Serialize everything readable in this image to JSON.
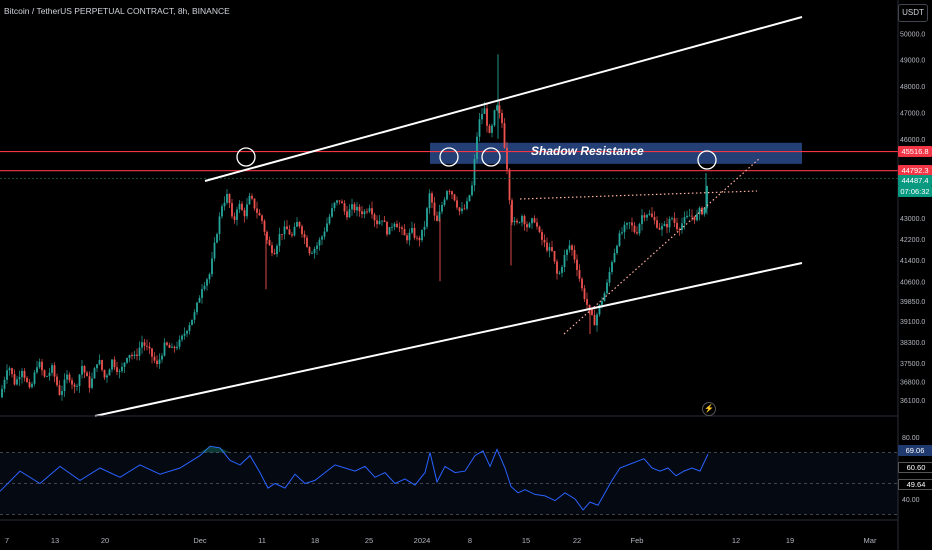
{
  "header": {
    "symbol_title": "Bitcoin / TetherUS PERPETUAL CONTRACT, 8h, BINANCE",
    "currency_button": "USDT"
  },
  "annotations": {
    "zone_label": "Shadow Resistance",
    "flash_icon": "lightning-icon"
  },
  "colors": {
    "background": "#000000",
    "up_candle": "#26a69a",
    "down_candle": "#ef5350",
    "channel": "#ffffff",
    "resistance_line": "#f23645",
    "zone_fill": "#2a4a8a",
    "rsi_line": "#2962ff",
    "rsi_label_bg": "#1e3a6e"
  },
  "price_badges": [
    {
      "text": "45516.8",
      "bg": "#f23645",
      "price": 45516.8
    },
    {
      "text": "44792.3",
      "bg": "#f23645",
      "price": 44792.3
    },
    {
      "text": "44487.4",
      "bg": "#089981",
      "price": 44487.4
    },
    {
      "text": "07:06:32",
      "bg": "#089981",
      "price": 44330
    }
  ],
  "rsi_badges": [
    {
      "text": "69.06",
      "bg": "#1e3a6e",
      "value": 69.06
    },
    {
      "text": "60.60",
      "bg": "#000000",
      "value": 60.6
    },
    {
      "text": "49.64",
      "bg": "#000000",
      "value": 49.64
    }
  ],
  "chart_data": {
    "type": "candlestick",
    "price_axis": {
      "ticks": [
        "50000.0",
        "49000.0",
        "48000.0",
        "47000.0",
        "46000.0",
        "43000.0",
        "42200.0",
        "41400.0",
        "40600.0",
        "39850.0",
        "39100.0",
        "38300.0",
        "37500.0",
        "36800.0",
        "36100.0"
      ],
      "ylim": [
        35700,
        51500
      ]
    },
    "rsi_axis": {
      "ticks": [
        "80.00",
        "40.00"
      ],
      "ylim": [
        30,
        85
      ],
      "bands": [
        70,
        50,
        30
      ]
    },
    "x_axis": {
      "ticks": [
        "7",
        "13",
        "20",
        "Dec",
        "11",
        "18",
        "25",
        "2024",
        "8",
        "15",
        "22",
        "Feb",
        "12",
        "19",
        "Mar"
      ]
    },
    "candle_path": [
      [
        0,
        36200
      ],
      [
        8,
        37500
      ],
      [
        15,
        36700
      ],
      [
        22,
        37300
      ],
      [
        30,
        36400
      ],
      [
        38,
        37600
      ],
      [
        45,
        36900
      ],
      [
        52,
        37300
      ],
      [
        60,
        36300
      ],
      [
        68,
        37100
      ],
      [
        75,
        36500
      ],
      [
        82,
        37400
      ],
      [
        90,
        36600
      ],
      [
        98,
        37700
      ],
      [
        105,
        36900
      ],
      [
        112,
        37600
      ],
      [
        120,
        37100
      ],
      [
        128,
        37900
      ],
      [
        135,
        37700
      ],
      [
        142,
        38300
      ],
      [
        150,
        37900
      ],
      [
        157,
        37400
      ],
      [
        165,
        38200
      ],
      [
        172,
        38000
      ],
      [
        180,
        38300
      ],
      [
        188,
        38900
      ],
      [
        195,
        39400
      ],
      [
        202,
        40400
      ],
      [
        210,
        40900
      ],
      [
        216,
        42300
      ],
      [
        222,
        43500
      ],
      [
        228,
        43900
      ],
      [
        233,
        42700
      ],
      [
        238,
        43600
      ],
      [
        244,
        43100
      ],
      [
        250,
        43800
      ],
      [
        256,
        43300
      ],
      [
        262,
        42900
      ],
      [
        268,
        42000
      ],
      [
        274,
        41700
      ],
      [
        280,
        42400
      ],
      [
        286,
        42600
      ],
      [
        292,
        42300
      ],
      [
        298,
        42900
      ],
      [
        304,
        42300
      ],
      [
        310,
        41700
      ],
      [
        316,
        41900
      ],
      [
        322,
        42300
      ],
      [
        328,
        42900
      ],
      [
        334,
        43500
      ],
      [
        340,
        43700
      ],
      [
        346,
        43100
      ],
      [
        352,
        43400
      ],
      [
        358,
        43300
      ],
      [
        364,
        43200
      ],
      [
        370,
        43500
      ],
      [
        376,
        42800
      ],
      [
        382,
        43000
      ],
      [
        388,
        42400
      ],
      [
        394,
        42900
      ],
      [
        400,
        42600
      ],
      [
        406,
        42200
      ],
      [
        412,
        42500
      ],
      [
        418,
        42100
      ],
      [
        424,
        42600
      ],
      [
        430,
        44000
      ],
      [
        436,
        42700
      ],
      [
        442,
        43500
      ],
      [
        448,
        44200
      ],
      [
        454,
        43800
      ],
      [
        460,
        43200
      ],
      [
        466,
        43400
      ],
      [
        472,
        44200
      ],
      [
        478,
        46500
      ],
      [
        484,
        47200
      ],
      [
        490,
        46000
      ],
      [
        496,
        47300
      ],
      [
        502,
        46600
      ],
      [
        508,
        44600
      ],
      [
        511,
        43000
      ],
      [
        516,
        42700
      ],
      [
        522,
        43100
      ],
      [
        528,
        42600
      ],
      [
        534,
        43000
      ],
      [
        540,
        42300
      ],
      [
        546,
        41900
      ],
      [
        552,
        41700
      ],
      [
        558,
        40700
      ],
      [
        564,
        41500
      ],
      [
        570,
        42000
      ],
      [
        576,
        41300
      ],
      [
        582,
        40300
      ],
      [
        588,
        39600
      ],
      [
        594,
        39000
      ],
      [
        600,
        39700
      ],
      [
        606,
        40300
      ],
      [
        612,
        41400
      ],
      [
        618,
        42200
      ],
      [
        624,
        42600
      ],
      [
        630,
        42800
      ],
      [
        636,
        42400
      ],
      [
        642,
        43100
      ],
      [
        648,
        43200
      ],
      [
        654,
        42900
      ],
      [
        660,
        42600
      ],
      [
        666,
        42700
      ],
      [
        672,
        43000
      ],
      [
        678,
        42600
      ],
      [
        684,
        42900
      ],
      [
        690,
        43100
      ],
      [
        696,
        43000
      ],
      [
        700,
        43300
      ],
      [
        704,
        43200
      ],
      [
        708,
        44480
      ]
    ],
    "rsi_path": [
      [
        0,
        45
      ],
      [
        20,
        58
      ],
      [
        40,
        50
      ],
      [
        60,
        61
      ],
      [
        80,
        52
      ],
      [
        100,
        60
      ],
      [
        120,
        54
      ],
      [
        140,
        62
      ],
      [
        160,
        56
      ],
      [
        180,
        60
      ],
      [
        200,
        68
      ],
      [
        210,
        74
      ],
      [
        220,
        73
      ],
      [
        230,
        65
      ],
      [
        240,
        62
      ],
      [
        250,
        68
      ],
      [
        260,
        57
      ],
      [
        268,
        47
      ],
      [
        275,
        50
      ],
      [
        285,
        47
      ],
      [
        295,
        56
      ],
      [
        305,
        50
      ],
      [
        315,
        52
      ],
      [
        325,
        57
      ],
      [
        335,
        62
      ],
      [
        345,
        60
      ],
      [
        355,
        58
      ],
      [
        365,
        61
      ],
      [
        375,
        54
      ],
      [
        385,
        57
      ],
      [
        395,
        50
      ],
      [
        405,
        53
      ],
      [
        415,
        49
      ],
      [
        425,
        57
      ],
      [
        430,
        70
      ],
      [
        437,
        51
      ],
      [
        445,
        61
      ],
      [
        455,
        57
      ],
      [
        465,
        58
      ],
      [
        475,
        68
      ],
      [
        483,
        71
      ],
      [
        490,
        61
      ],
      [
        497,
        72
      ],
      [
        505,
        60
      ],
      [
        511,
        48
      ],
      [
        518,
        44
      ],
      [
        525,
        46
      ],
      [
        535,
        43
      ],
      [
        545,
        42
      ],
      [
        555,
        39
      ],
      [
        565,
        44
      ],
      [
        575,
        40
      ],
      [
        583,
        33
      ],
      [
        590,
        38
      ],
      [
        598,
        36
      ],
      [
        605,
        44
      ],
      [
        612,
        52
      ],
      [
        620,
        60
      ],
      [
        628,
        62
      ],
      [
        636,
        64
      ],
      [
        644,
        66
      ],
      [
        652,
        60
      ],
      [
        660,
        58
      ],
      [
        668,
        60
      ],
      [
        676,
        55
      ],
      [
        684,
        58
      ],
      [
        692,
        60
      ],
      [
        700,
        58
      ],
      [
        708,
        69
      ]
    ]
  }
}
